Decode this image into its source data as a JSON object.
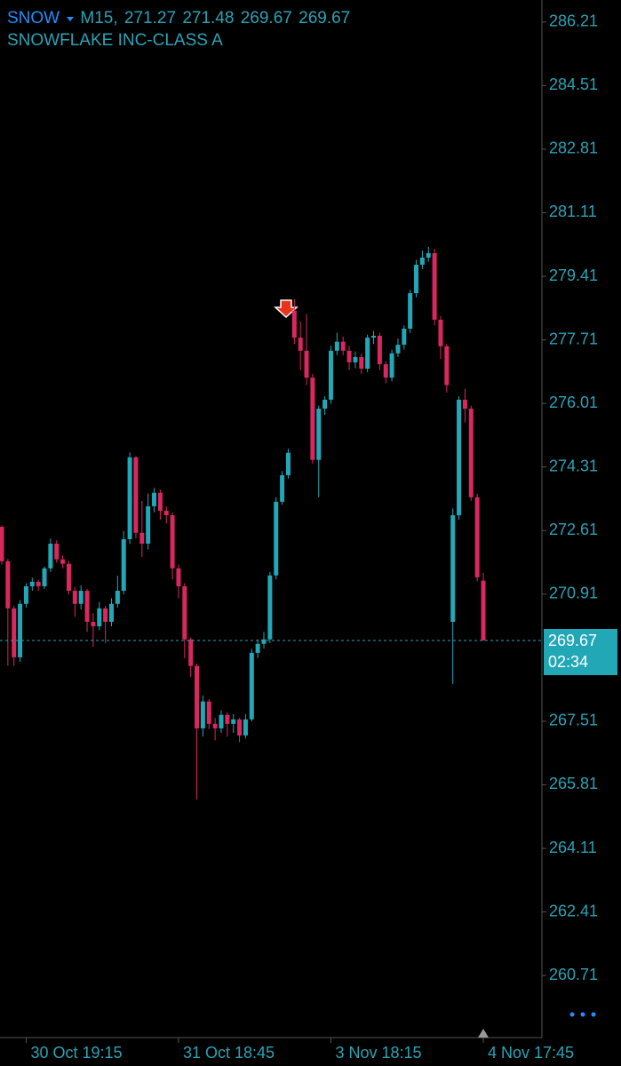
{
  "chart_data": {
    "type": "candlestick",
    "symbol": "SNOW",
    "timeframe": "M15,",
    "title": "SNOWFLAKE INC-CLASS A",
    "countdown": "02:34",
    "up_color": "#22a7b6",
    "down_color": "#d9275f",
    "text_color": "#2aa3b6",
    "symbol_color": "#1f8fff",
    "categories": [
      null,
      null,
      null,
      null,
      "30 Oct 19:15",
      null,
      null,
      null,
      null,
      null,
      null,
      null,
      null,
      null,
      null,
      null,
      null,
      null,
      null,
      null,
      null,
      null,
      null,
      null,
      null,
      null,
      null,
      null,
      null,
      "31 Oct 18:45",
      null,
      null,
      null,
      null,
      null,
      null,
      null,
      null,
      null,
      null,
      null,
      null,
      null,
      null,
      null,
      null,
      null,
      null,
      null,
      null,
      null,
      null,
      null,
      null,
      "3 Nov 18:15",
      null,
      null,
      null,
      null,
      null,
      null,
      null,
      null,
      null,
      null,
      null,
      null,
      null,
      null,
      null,
      null,
      null,
      null,
      null,
      null,
      null,
      null,
      null,
      null,
      "4 Nov 17:45"
    ],
    "open": [
      272.71,
      271.79,
      270.53,
      269.22,
      270.65,
      271.12,
      271.24,
      271.12,
      271.6,
      272.26,
      271.84,
      271.72,
      271.0,
      270.65,
      271.0,
      270.17,
      270.05,
      270.53,
      270.17,
      270.65,
      271.0,
      272.38,
      274.57,
      272.55,
      272.26,
      273.26,
      273.62,
      273.14,
      273.02,
      271.6,
      271.12,
      269.7,
      268.99,
      267.32,
      268.04,
      267.44,
      267.32,
      267.68,
      267.44,
      267.56,
      267.13,
      267.56,
      269.34,
      269.58,
      269.7,
      271.41,
      273.38,
      274.09,
      278.49,
      277.77,
      277.42,
      276.7,
      274.5,
      275.87,
      276.11,
      277.42,
      277.66,
      277.42,
      277.11,
      277.25,
      276.94,
      277.77,
      277.82,
      277.06,
      276.7,
      277.35,
      277.58,
      278.01,
      278.96,
      279.72,
      279.91,
      280.03,
      278.25,
      277.54,
      270.17,
      273.02,
      276.11,
      275.87,
      273.5,
      271.27
    ],
    "high": [
      272.75,
      271.85,
      270.6,
      270.75,
      271.2,
      271.35,
      271.3,
      271.65,
      272.4,
      272.35,
      271.95,
      271.8,
      271.1,
      271.15,
      271.05,
      270.4,
      270.7,
      270.6,
      270.8,
      271.4,
      272.6,
      274.7,
      274.6,
      273.4,
      273.6,
      273.75,
      273.7,
      273.25,
      273.1,
      271.7,
      271.2,
      269.75,
      269.05,
      268.2,
      268.1,
      267.6,
      267.8,
      267.75,
      267.7,
      267.6,
      267.7,
      269.45,
      269.7,
      269.9,
      271.5,
      273.5,
      274.2,
      274.8,
      278.8,
      278.2,
      278.4,
      276.8,
      275.95,
      276.2,
      277.55,
      277.9,
      277.8,
      277.55,
      277.4,
      277.35,
      277.85,
      277.95,
      277.9,
      277.15,
      277.45,
      277.75,
      278.1,
      279.05,
      279.85,
      280.1,
      280.2,
      280.15,
      278.35,
      277.6,
      273.2,
      276.2,
      276.4,
      275.95,
      273.6,
      271.48
    ],
    "low": [
      271.7,
      269.0,
      268.99,
      269.1,
      270.55,
      271.0,
      271.0,
      271.05,
      271.5,
      271.75,
      271.6,
      270.9,
      270.3,
      270.5,
      269.9,
      269.5,
      269.95,
      269.6,
      270.05,
      270.55,
      270.9,
      272.25,
      272.4,
      271.9,
      272.1,
      273.1,
      272.9,
      272.8,
      271.3,
      270.8,
      269.2,
      268.7,
      265.42,
      267.1,
      267.3,
      267.0,
      267.2,
      267.1,
      267.2,
      266.95,
      267.05,
      267.5,
      269.2,
      269.45,
      269.6,
      271.3,
      273.3,
      274.0,
      277.6,
      276.9,
      276.5,
      274.4,
      273.5,
      275.7,
      276.0,
      277.3,
      277.3,
      276.9,
      276.95,
      276.8,
      276.85,
      277.6,
      276.9,
      276.55,
      276.6,
      277.25,
      277.45,
      277.9,
      278.85,
      279.6,
      279.8,
      278.1,
      277.2,
      276.3,
      268.51,
      272.9,
      275.5,
      273.4,
      271.25,
      269.67
    ],
    "close": [
      271.79,
      270.53,
      269.22,
      270.65,
      271.12,
      271.24,
      271.12,
      271.6,
      272.26,
      271.84,
      271.72,
      271.0,
      270.65,
      271.0,
      270.17,
      270.05,
      270.53,
      270.17,
      270.65,
      271.0,
      272.38,
      274.57,
      272.55,
      272.26,
      273.26,
      273.62,
      273.14,
      273.02,
      271.6,
      271.12,
      269.7,
      268.99,
      267.32,
      268.04,
      267.44,
      267.32,
      267.68,
      267.44,
      267.56,
      267.13,
      267.56,
      269.34,
      269.58,
      269.7,
      271.41,
      273.38,
      274.09,
      274.69,
      277.77,
      277.42,
      276.7,
      274.5,
      275.87,
      276.11,
      277.42,
      277.66,
      277.42,
      277.11,
      277.25,
      276.94,
      277.77,
      277.82,
      277.06,
      276.7,
      277.35,
      277.58,
      278.01,
      278.96,
      279.72,
      279.91,
      280.03,
      278.25,
      277.54,
      276.5,
      273.02,
      276.11,
      275.87,
      273.5,
      271.36,
      269.67
    ],
    "ylim": [
      259.05,
      286.8
    ],
    "yticks": [
      286.21,
      284.51,
      282.81,
      281.11,
      279.41,
      277.71,
      276.01,
      274.31,
      272.61,
      270.91,
      267.51,
      265.81,
      264.11,
      262.41,
      260.71
    ],
    "grid": false
  }
}
